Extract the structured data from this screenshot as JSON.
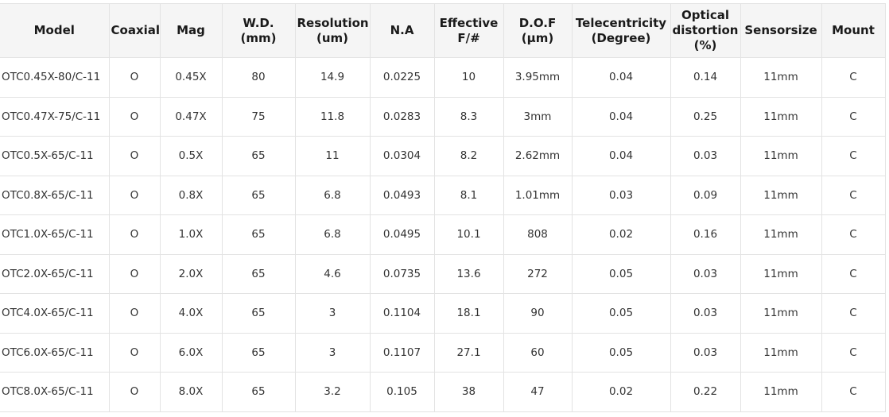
{
  "headers": [
    "Model",
    "Coaxial",
    "Mag",
    "W.D.\n(mm)",
    "Resolution\n(um)",
    "N.A",
    "Effective\nF/#",
    "D.O.F\n(μm)",
    "Telecentricity\n(Degree)",
    "Optical\ndistortion\n(%)",
    "Sensorsize",
    "Mount"
  ],
  "rows": [
    [
      "OTC0.45X-80/C-11",
      "O",
      "0.45X",
      "80",
      "14.9",
      "0.0225",
      "10",
      "3.95mm",
      "0.04",
      "0.14",
      "11mm",
      "C"
    ],
    [
      "OTC0.47X-75/C-11",
      "O",
      "0.47X",
      "75",
      "11.8",
      "0.0283",
      "8.3",
      "3mm",
      "0.04",
      "0.25",
      "11mm",
      "C"
    ],
    [
      "OTC0.5X-65/C-11",
      "O",
      "0.5X",
      "65",
      "11",
      "0.0304",
      "8.2",
      "2.62mm",
      "0.04",
      "0.03",
      "11mm",
      "C"
    ],
    [
      "OTC0.8X-65/C-11",
      "O",
      "0.8X",
      "65",
      "6.8",
      "0.0493",
      "8.1",
      "1.01mm",
      "0.03",
      "0.09",
      "11mm",
      "C"
    ],
    [
      "OTC1.0X-65/C-11",
      "O",
      "1.0X",
      "65",
      "6.8",
      "0.0495",
      "10.1",
      "808",
      "0.02",
      "0.16",
      "11mm",
      "C"
    ],
    [
      "OTC2.0X-65/C-11",
      "O",
      "2.0X",
      "65",
      "4.6",
      "0.0735",
      "13.6",
      "272",
      "0.05",
      "0.03",
      "11mm",
      "C"
    ],
    [
      "OTC4.0X-65/C-11",
      "O",
      "4.0X",
      "65",
      "3",
      "0.1104",
      "18.1",
      "90",
      "0.05",
      "0.03",
      "11mm",
      "C"
    ],
    [
      "OTC6.0X-65/C-11",
      "O",
      "6.0X",
      "65",
      "3",
      "0.1107",
      "27.1",
      "60",
      "0.05",
      "0.03",
      "11mm",
      "C"
    ],
    [
      "OTC8.0X-65/C-11",
      "O",
      "8.0X",
      "65",
      "3.2",
      "0.105",
      "38",
      "47",
      "0.02",
      "0.22",
      "11mm",
      "C"
    ]
  ]
}
